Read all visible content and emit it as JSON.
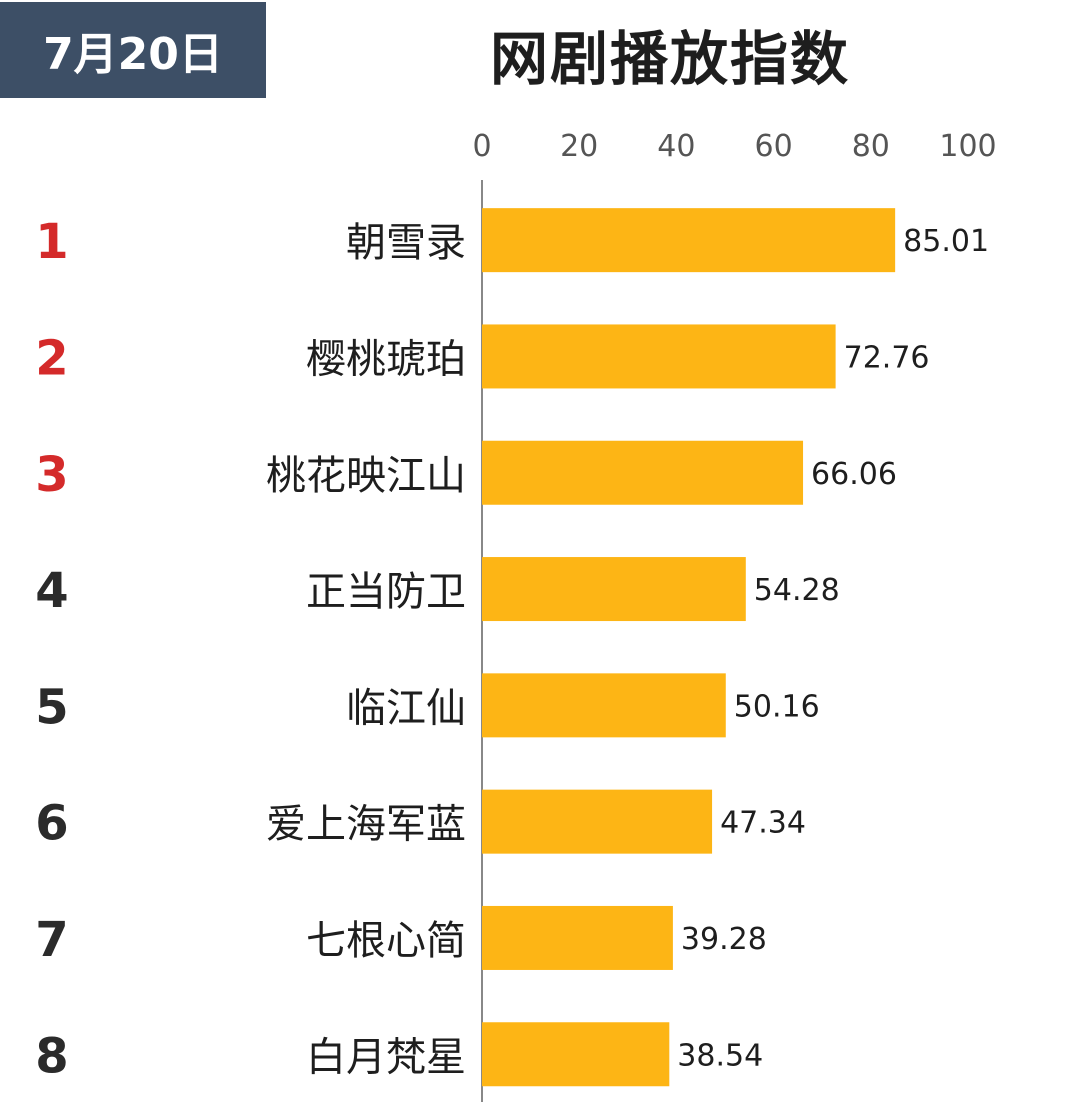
{
  "badge": {
    "date": "7月20日"
  },
  "chart_data": {
    "type": "bar",
    "orientation": "horizontal",
    "title": "网剧播放指数",
    "categories": [
      "朝雪录",
      "樱桃琥珀",
      "桃花映江山",
      "正当防卫",
      "临江仙",
      "爱上海军蓝",
      "七根心简",
      "白月梵星"
    ],
    "ranks": [
      "1",
      "2",
      "3",
      "4",
      "5",
      "6",
      "7",
      "8"
    ],
    "values": [
      85.01,
      72.76,
      66.06,
      54.28,
      50.16,
      47.34,
      39.28,
      38.54
    ],
    "value_labels": [
      "85.01",
      "72.76",
      "66.06",
      "54.28",
      "50.16",
      "47.34",
      "39.28",
      "38.54"
    ],
    "xlim": [
      0,
      100
    ],
    "x_ticks": [
      0,
      20,
      40,
      60,
      80,
      100
    ],
    "xlabel": "",
    "ylabel": "",
    "grid": false,
    "legend": "none",
    "colors": {
      "bar": "#fdb515",
      "top_rank": "#d42a2a",
      "rank": "#2b2b2b",
      "tick": "#555555",
      "label": "#1e1e1e",
      "axis": "#888888"
    }
  }
}
